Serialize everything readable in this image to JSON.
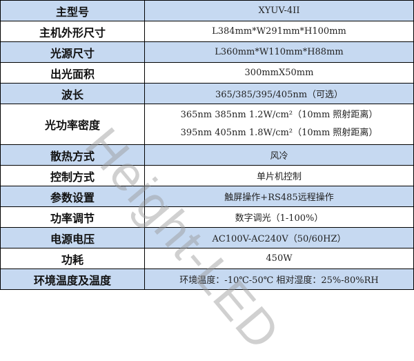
{
  "rows": [
    {
      "key": "主型号",
      "value": "XYUV-4II",
      "blue": true
    },
    {
      "key": "主机外形尺寸",
      "value": "L384mm*W291mm*H100mm",
      "blue": false
    },
    {
      "key": "光源尺寸",
      "value": "L360mm*W110mm*H88mm",
      "blue": true
    },
    {
      "key": "出光面积",
      "value": "300mmX50mm",
      "blue": false
    },
    {
      "key": "波长",
      "value": "365/385/395/405nm（可选）",
      "blue": true
    },
    {
      "key": "光功率密度",
      "lines": [
        "365nm 385nm  1.2W/cm²（10mm 照射距离）",
        "395nm 405nm  1.8W/cm²（10mm 照射距离）"
      ],
      "blue": false
    },
    {
      "key": "散热方式",
      "value": "风冷",
      "blue": true
    },
    {
      "key": "控制方式",
      "value": "单片机控制",
      "blue": false
    },
    {
      "key": "参数设置",
      "value": "触屏操作+RS485远程操作",
      "blue": true
    },
    {
      "key": "功率调节",
      "value": "数字调光（1-100%）",
      "blue": false
    },
    {
      "key": "电源电压",
      "value": "AC100V-AC240V（50/60HZ）",
      "blue": true
    },
    {
      "key": "功耗",
      "value": "450W",
      "blue": false
    },
    {
      "key": "环境温度及温度",
      "value": "环境温度：-10℃-50℃ 相对湿度：25%-80%RH",
      "blue": true
    }
  ],
  "watermark": "Height-LED",
  "colors": {
    "row_highlight": "#c6d9f1"
  }
}
